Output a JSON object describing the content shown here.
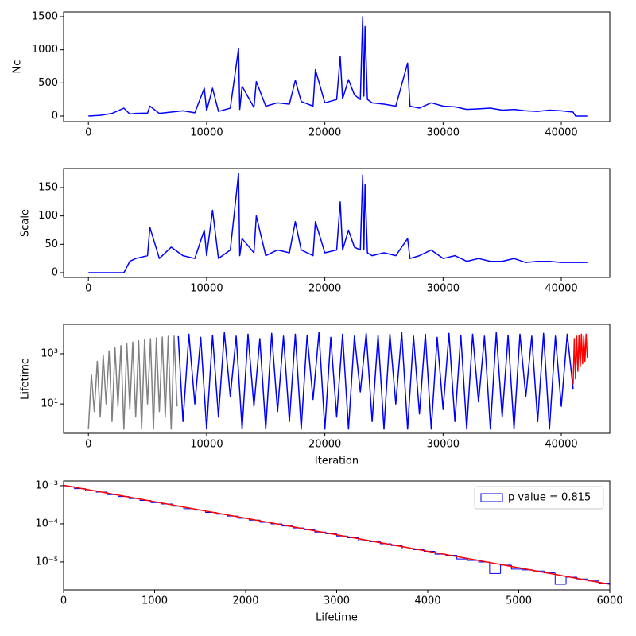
{
  "chart_data": [
    {
      "type": "line",
      "ylabel": "Nc",
      "xlim": [
        -2100,
        44100
      ],
      "xticks": [
        0,
        10000,
        20000,
        30000,
        40000
      ],
      "ylim": [
        -84,
        1572
      ],
      "yticks": [
        0,
        500,
        1000,
        1500
      ],
      "series": [
        {
          "color": "#0000ff",
          "x": [
            0,
            1000,
            2000,
            3000,
            3500,
            4000,
            5000,
            5200,
            6000,
            7000,
            8000,
            9000,
            9800,
            10000,
            10500,
            11000,
            12000,
            12700,
            12800,
            13000,
            14000,
            14200,
            15000,
            16000,
            17000,
            17500,
            18000,
            19000,
            19200,
            20000,
            21000,
            21300,
            21500,
            22000,
            22500,
            23000,
            23200,
            23300,
            23400,
            23600,
            24000,
            25000,
            26000,
            27000,
            27200,
            28000,
            29000,
            30000,
            31000,
            32000,
            33000,
            34000,
            35000,
            36000,
            37000,
            38000,
            39000,
            40000,
            41000,
            41200,
            42200
          ],
          "values": [
            0,
            10,
            40,
            120,
            30,
            40,
            45,
            150,
            40,
            60,
            80,
            50,
            420,
            80,
            420,
            70,
            120,
            1020,
            100,
            450,
            130,
            520,
            150,
            200,
            180,
            540,
            220,
            150,
            700,
            200,
            250,
            900,
            260,
            550,
            320,
            250,
            1500,
            300,
            1350,
            250,
            200,
            180,
            150,
            800,
            150,
            120,
            200,
            150,
            140,
            100,
            110,
            120,
            90,
            100,
            80,
            70,
            90,
            80,
            60,
            0,
            0
          ]
        }
      ]
    },
    {
      "type": "line",
      "ylabel": "Scale",
      "xlim": [
        -2100,
        44100
      ],
      "xticks": [
        0,
        10000,
        20000,
        30000,
        40000
      ],
      "ylim": [
        -8.4,
        183.6
      ],
      "yticks": [
        0,
        50,
        100,
        150
      ],
      "series": [
        {
          "color": "#0000ff",
          "x": [
            0,
            1000,
            2000,
            3000,
            3500,
            4000,
            5000,
            5200,
            6000,
            7000,
            8000,
            9000,
            9800,
            10000,
            10500,
            11000,
            12000,
            12700,
            12800,
            13000,
            14000,
            14200,
            15000,
            16000,
            17000,
            17500,
            18000,
            19000,
            19200,
            20000,
            21000,
            21300,
            21500,
            22000,
            22500,
            23000,
            23200,
            23300,
            23400,
            23600,
            24000,
            25000,
            26000,
            27000,
            27200,
            28000,
            29000,
            30000,
            31000,
            32000,
            33000,
            34000,
            35000,
            36000,
            37000,
            38000,
            39000,
            40000,
            41000,
            41200,
            42200
          ],
          "values": [
            0,
            0,
            0,
            0,
            20,
            25,
            30,
            80,
            25,
            45,
            30,
            25,
            75,
            30,
            110,
            25,
            40,
            175,
            30,
            60,
            35,
            100,
            30,
            40,
            35,
            90,
            40,
            30,
            90,
            35,
            40,
            125,
            40,
            75,
            45,
            40,
            172,
            40,
            155,
            35,
            30,
            35,
            30,
            60,
            25,
            30,
            40,
            25,
            30,
            20,
            25,
            20,
            20,
            25,
            18,
            20,
            20,
            18,
            18,
            18,
            18
          ]
        }
      ]
    },
    {
      "type": "line",
      "ylabel": "Lifetime",
      "xlabel": "Iteration",
      "yscale": "log",
      "xlim": [
        -2100,
        44100
      ],
      "xticks": [
        0,
        10000,
        20000,
        30000,
        40000
      ],
      "ylim": [
        0.68,
        14800
      ],
      "yticks": [
        {
          "value": 10,
          "label": "10¹"
        },
        {
          "value": 1000,
          "label": "10³"
        }
      ],
      "series": [
        {
          "color": "#808080",
          "x": [
            0,
            250,
            500,
            750,
            1000,
            1250,
            1500,
            1750,
            2000,
            2250,
            2500,
            2750,
            3000,
            3250,
            3500,
            3750,
            4000,
            4250,
            4500,
            4750,
            5000,
            5250,
            5500,
            5750,
            6000,
            6250,
            6500,
            6750,
            7000,
            7250,
            7500
          ],
          "values": [
            1,
            150,
            5,
            500,
            3,
            900,
            10,
            1300,
            2,
            1700,
            8,
            2100,
            1,
            2500,
            6,
            2900,
            3,
            3300,
            1,
            3700,
            10,
            4000,
            1,
            4300,
            5,
            4600,
            3,
            4900,
            1,
            5000,
            8
          ]
        },
        {
          "color": "#0000ff",
          "x": [
            7600,
            8000,
            8500,
            9000,
            9500,
            10000,
            10500,
            11000,
            11500,
            12000,
            12500,
            13000,
            13500,
            14000,
            14500,
            15000,
            15500,
            16000,
            16500,
            17000,
            17500,
            18000,
            18500,
            19000,
            19500,
            20000,
            20500,
            21000,
            21500,
            22000,
            22500,
            23000,
            23500,
            24000,
            24500,
            25000,
            25500,
            26000,
            26500,
            27000,
            27500,
            28000,
            28500,
            29000,
            29500,
            30000,
            30500,
            31000,
            31500,
            32000,
            32500,
            33000,
            33500,
            34000,
            34500,
            35000,
            35500,
            36000,
            36500,
            37000,
            37500,
            38000,
            38500,
            39000,
            39500,
            40000,
            40500,
            41000
          ],
          "values": [
            5000,
            2,
            6000,
            10,
            4500,
            1,
            5500,
            3,
            7000,
            20,
            5000,
            1,
            6000,
            8,
            4000,
            1,
            6500,
            5,
            5000,
            2,
            6000,
            1,
            5500,
            15,
            7000,
            1,
            4500,
            3,
            6000,
            1,
            5000,
            30,
            6500,
            2,
            5500,
            1,
            6000,
            10,
            7000,
            1,
            5000,
            4,
            6000,
            1,
            4500,
            6,
            6500,
            2,
            5500,
            1,
            6000,
            12,
            5000,
            1,
            7000,
            3,
            5500,
            1,
            6000,
            20,
            5000,
            2,
            6500,
            1,
            5000,
            8,
            6000,
            40
          ]
        },
        {
          "color": "#ff0000",
          "x": [
            41000,
            41100,
            41200,
            41300,
            41400,
            41500,
            41600,
            41700,
            41800,
            41900,
            42000,
            42100,
            42200
          ],
          "values": [
            60,
            4000,
            100,
            5000,
            200,
            5500,
            300,
            6000,
            400,
            5000,
            500,
            6000,
            700
          ]
        }
      ]
    },
    {
      "type": "histogram",
      "xlabel": "Lifetime",
      "yscale": "log",
      "xlim": [
        0,
        6000
      ],
      "xticks": [
        0,
        1000,
        2000,
        3000,
        4000,
        5000,
        6000
      ],
      "ylim": [
        1.86e-06,
        0.00133
      ],
      "yticks": [
        {
          "value": 0.001,
          "label": "10⁻³"
        },
        {
          "value": 0.0001,
          "label": "10⁻⁴"
        },
        {
          "value": 1e-05,
          "label": "10⁻⁵"
        }
      ],
      "legend": "upper right",
      "series": [
        {
          "name": "p value = 0.815",
          "color": "#0000ff",
          "bins": [
            0,
            120,
            240,
            360,
            480,
            600,
            720,
            840,
            960,
            1080,
            1200,
            1320,
            1440,
            1560,
            1680,
            1800,
            1920,
            2040,
            2160,
            2280,
            2400,
            2520,
            2640,
            2760,
            2880,
            3000,
            3120,
            3240,
            3360,
            3480,
            3600,
            3720,
            3840,
            3960,
            4080,
            4200,
            4320,
            4440,
            4560,
            4680,
            4800,
            4920,
            5040,
            5160,
            5280,
            5400,
            5520,
            5640,
            5760,
            5880,
            6000
          ],
          "values": [
            0.00094,
            0.00084,
            0.00074,
            0.00068,
            0.00058,
            0.00052,
            0.00046,
            0.00041,
            0.00036,
            0.00033,
            0.00029,
            0.00025,
            0.00023,
            0.0002,
            0.00018,
            0.00016,
            0.00014,
            0.000125,
            0.00011,
            0.0001,
            8.8e-05,
            7.8e-05,
            7e-05,
            6.1e-05,
            5.5e-05,
            4.8e-05,
            4.3e-05,
            3.6e-05,
            3.4e-05,
            3e-05,
            2.7e-05,
            2.2e-05,
            2.1e-05,
            1.9e-05,
            1.6e-05,
            1.5e-05,
            1.2e-05,
            1.1e-05,
            1e-05,
            5e-06,
            8.3e-06,
            6.5e-06,
            6.2e-06,
            5.8e-06,
            5.2e-06,
            2.6e-06,
            4e-06,
            3.6e-06,
            3.2e-06,
            2.8e-06
          ]
        },
        {
          "color": "#ff0000",
          "x": [
            0,
            6000
          ],
          "values": [
            0.00103,
            2.6e-06
          ]
        }
      ]
    }
  ]
}
